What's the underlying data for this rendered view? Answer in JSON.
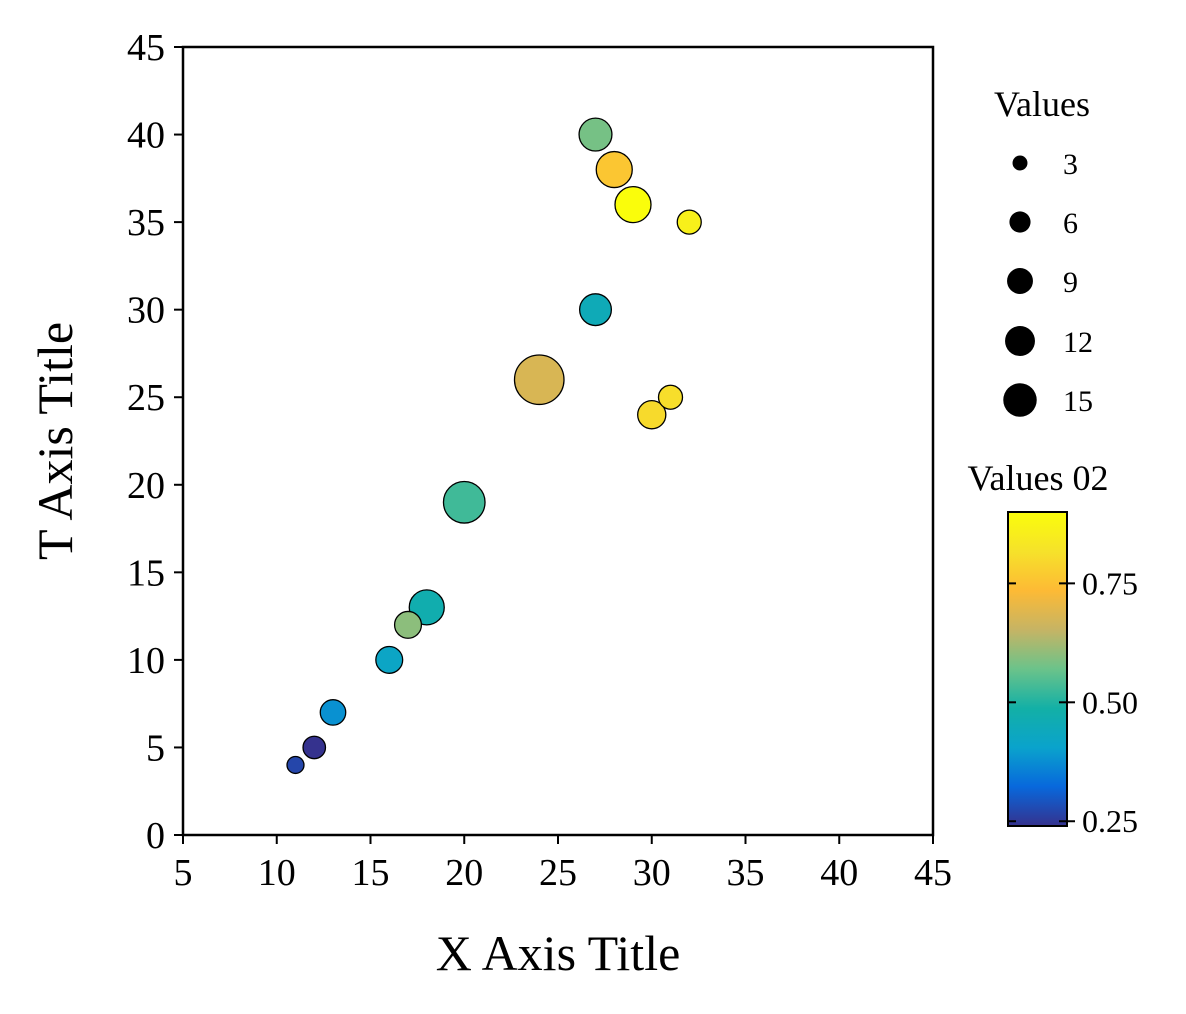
{
  "chart_data": {
    "type": "scatter",
    "xlabel": "X Axis Title",
    "ylabel": "T Axis Title",
    "xlim": [
      5,
      45
    ],
    "ylim": [
      0,
      45
    ],
    "x_ticks": [
      "5",
      "10",
      "15",
      "20",
      "25",
      "30",
      "35",
      "40",
      "45"
    ],
    "y_ticks": [
      "0",
      "5",
      "10",
      "15",
      "20",
      "25",
      "30",
      "35",
      "40",
      "45"
    ],
    "grid": false,
    "size_legend": {
      "title": "Values",
      "entries": [
        "3",
        "6",
        "9",
        "12",
        "15"
      ],
      "values": [
        3,
        6,
        9,
        12,
        15
      ]
    },
    "colorbar": {
      "title": "Values 02",
      "range": [
        0.24,
        0.9
      ],
      "ticks": [
        "0.25",
        "0.50",
        "0.75"
      ],
      "tick_values": [
        0.25,
        0.5,
        0.75
      ],
      "colormap": [
        "#35328e",
        "#0868dc",
        "#0aa3cc",
        "#13b0a6",
        "#6bc38a",
        "#c6b464",
        "#fdba35",
        "#f6e22a",
        "#fafd0b"
      ]
    },
    "points": [
      {
        "x": 11,
        "y": 4,
        "size": 2,
        "color_value": 0.27
      },
      {
        "x": 12,
        "y": 5,
        "size": 3.5,
        "color_value": 0.24
      },
      {
        "x": 13,
        "y": 7,
        "size": 4.5,
        "color_value": 0.38
      },
      {
        "x": 16,
        "y": 10,
        "size": 5,
        "color_value": 0.42
      },
      {
        "x": 17,
        "y": 12,
        "size": 5,
        "color_value": 0.6
      },
      {
        "x": 18,
        "y": 13,
        "size": 8.5,
        "color_value": 0.47
      },
      {
        "x": 20,
        "y": 19,
        "size": 12,
        "color_value": 0.53
      },
      {
        "x": 24,
        "y": 26,
        "size": 17,
        "color_value": 0.68
      },
      {
        "x": 27,
        "y": 30,
        "size": 7,
        "color_value": 0.45
      },
      {
        "x": 27,
        "y": 40,
        "size": 7.5,
        "color_value": 0.58
      },
      {
        "x": 28,
        "y": 38,
        "size": 9,
        "color_value": 0.76
      },
      {
        "x": 29,
        "y": 36,
        "size": 9,
        "color_value": 0.9
      },
      {
        "x": 30,
        "y": 24,
        "size": 5.5,
        "color_value": 0.8
      },
      {
        "x": 31,
        "y": 25,
        "size": 4,
        "color_value": 0.81
      },
      {
        "x": 32,
        "y": 35,
        "size": 4,
        "color_value": 0.86
      }
    ]
  }
}
